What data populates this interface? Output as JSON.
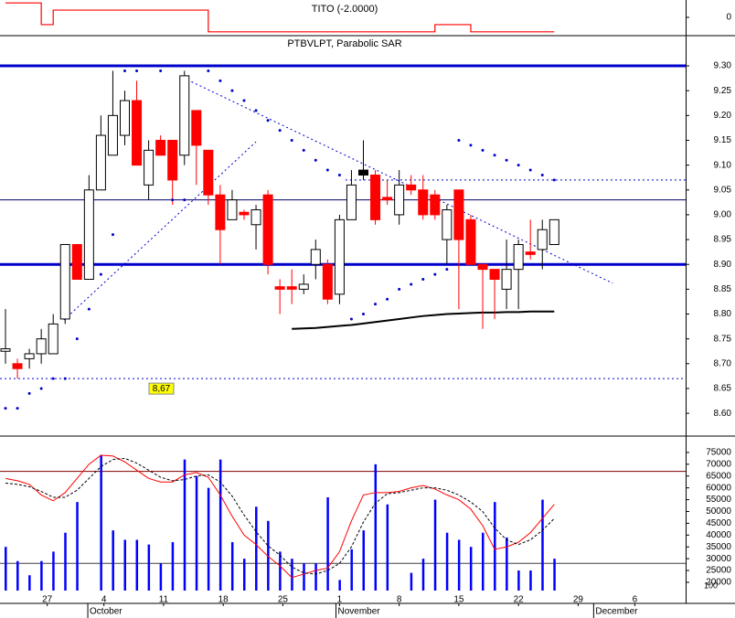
{
  "chart_data": [
    {
      "type": "step",
      "title": "TITO (-2.0000)",
      "color": "#ff0000",
      "values": [
        2,
        2,
        2,
        -1,
        1,
        1,
        1,
        1,
        1,
        1,
        1,
        1,
        1,
        1,
        1,
        1,
        1,
        -2,
        -2,
        -2,
        -2,
        -2,
        -2,
        -2,
        -2,
        -2,
        -2,
        -2,
        -2,
        -2,
        -2,
        -2,
        -2,
        -2,
        -2,
        -2,
        -1,
        -1,
        -1,
        -2,
        -2,
        -2,
        -2,
        -2,
        -2,
        -2,
        -2
      ],
      "ylim": [
        -2.4,
        2.4
      ],
      "yticks": [
        0
      ]
    },
    {
      "type": "candlestick",
      "title": "PTBVLPT, Parabolic SAR",
      "open": [
        8.725,
        8.7,
        8.71,
        8.72,
        8.72,
        8.79,
        8.94,
        8.87,
        9.05,
        9.12,
        9.16,
        9.23,
        9.06,
        9.15,
        9.15,
        9.12,
        9.21,
        9.13,
        9.04,
        8.99,
        9.005,
        8.98,
        9.04,
        8.855,
        8.855,
        8.85,
        8.9,
        8.9,
        8.84,
        8.99,
        9.08,
        9.08,
        9.035,
        9.0,
        9.06,
        9.05,
        9.04,
        8.95,
        9.05,
        8.99,
        8.9,
        8.89,
        8.85,
        8.89,
        8.925,
        8.93,
        8.94
      ],
      "high": [
        8.81,
        8.71,
        8.73,
        8.77,
        8.8,
        8.94,
        8.94,
        9.08,
        9.2,
        9.29,
        9.25,
        9.27,
        9.15,
        9.16,
        9.15,
        9.29,
        9.21,
        9.13,
        9.06,
        9.05,
        9.01,
        9.02,
        9.05,
        8.87,
        8.89,
        8.88,
        8.95,
        8.91,
        9.0,
        9.09,
        9.15,
        9.09,
        9.07,
        9.09,
        9.08,
        9.08,
        9.05,
        9.02,
        9.05,
        9.0,
        8.9,
        8.89,
        8.95,
        8.95,
        8.99,
        8.99,
        8.99
      ],
      "low": [
        8.7,
        8.67,
        8.69,
        8.7,
        8.72,
        8.78,
        8.87,
        8.87,
        9.05,
        9.12,
        9.14,
        9.1,
        9.03,
        9.12,
        9.02,
        9.1,
        9.06,
        9.02,
        8.9,
        8.99,
        8.99,
        8.93,
        8.88,
        8.8,
        8.82,
        8.84,
        8.87,
        8.82,
        8.82,
        8.99,
        9.07,
        8.98,
        9.02,
        8.98,
        9.04,
        8.99,
        8.99,
        8.9,
        8.81,
        8.9,
        8.77,
        8.79,
        8.81,
        8.81,
        8.91,
        8.89,
        8.94
      ],
      "close": [
        8.73,
        8.69,
        8.72,
        8.75,
        8.78,
        8.94,
        8.87,
        9.05,
        9.16,
        9.2,
        9.23,
        9.1,
        9.13,
        9.12,
        9.07,
        9.28,
        9.14,
        9.04,
        8.97,
        9.03,
        9.0,
        9.01,
        8.9,
        8.85,
        8.85,
        8.86,
        8.93,
        8.83,
        8.99,
        9.06,
        9.09,
        8.99,
        9.03,
        9.06,
        9.05,
        9.0,
        9.0,
        9.01,
        8.95,
        8.9,
        8.89,
        8.87,
        8.89,
        8.94,
        8.92,
        8.97,
        8.99
      ],
      "up_color": "#ffffff",
      "down_color": "#ff0000",
      "highlight": 30,
      "highlight_color": "#000000",
      "sar": [
        8.61,
        8.61,
        8.64,
        8.65,
        8.67,
        8.67,
        8.75,
        8.81,
        8.88,
        8.96,
        9.29,
        9.29,
        9.3,
        9.29,
        9.03,
        9.03,
        9.3,
        9.29,
        9.27,
        9.25,
        9.23,
        9.21,
        9.19,
        9.17,
        9.15,
        9.13,
        9.11,
        9.09,
        9.08,
        8.79,
        8.8,
        8.82,
        8.83,
        8.85,
        8.86,
        8.87,
        8.88,
        8.89,
        9.15,
        9.14,
        9.13,
        9.12,
        9.11,
        9.1,
        9.09,
        9.08,
        9.07
      ],
      "sar_color": "#0000cc",
      "average": [
        null,
        null,
        null,
        null,
        null,
        null,
        null,
        null,
        null,
        null,
        null,
        null,
        null,
        null,
        null,
        null,
        null,
        null,
        null,
        null,
        null,
        null,
        null,
        null,
        8.77,
        8.771,
        8.772,
        8.774,
        8.776,
        8.778,
        8.781,
        8.784,
        8.787,
        8.79,
        8.793,
        8.796,
        8.798,
        8.8,
        8.801,
        8.802,
        8.803,
        8.803,
        8.804,
        8.804,
        8.805,
        8.805,
        8.805
      ],
      "average_color": "#000000",
      "levels": [
        {
          "value": 9.3,
          "style": "thick",
          "color": "#0000cc"
        },
        {
          "value": 8.9,
          "style": "thick",
          "color": "#0000cc"
        },
        {
          "value": 9.03,
          "style": "thin",
          "color": "#000066"
        },
        {
          "value": 8.67,
          "style": "dotted",
          "color": "#0000cc",
          "label": "8,67"
        },
        {
          "value": 9.07,
          "style": "dotted",
          "color": "#0000cc",
          "from": 28.5
        }
      ],
      "trendlines": [
        {
          "x": [
            4.9,
            21
          ],
          "y": [
            8.788,
            9.147
          ],
          "color": "#0000cc"
        },
        {
          "x": [
            14.9,
            50.9
          ],
          "y": [
            9.276,
            8.862
          ],
          "color": "#0000cc"
        }
      ],
      "ylim": [
        8.556,
        9.359
      ],
      "yticks": [
        {
          "value": 9.3,
          "label": "9.30"
        },
        {
          "value": 9.25,
          "label": "9.25"
        },
        {
          "value": 9.2,
          "label": "9.20"
        },
        {
          "value": 9.15,
          "label": "9.15"
        },
        {
          "value": 9.1,
          "label": "9.10"
        },
        {
          "value": 9.05,
          "label": "9.05"
        },
        {
          "value": 9.0,
          "label": "9.00"
        },
        {
          "value": 8.95,
          "label": "8.95"
        },
        {
          "value": 8.9,
          "label": "8.90"
        },
        {
          "value": 8.85,
          "label": "8.85"
        },
        {
          "value": 8.8,
          "label": "8.80"
        },
        {
          "value": 8.75,
          "label": "8.75"
        },
        {
          "value": 8.7,
          "label": "8.70"
        },
        {
          "value": 8.65,
          "label": "8.65"
        },
        {
          "value": 8.6,
          "label": "8.60"
        }
      ]
    },
    {
      "type": "bar",
      "color": "#0000ff",
      "values": [
        35000,
        29000,
        23000,
        29000,
        33000,
        41000,
        54000,
        null,
        74000,
        42000,
        38000,
        38000,
        36000,
        28000,
        37000,
        72000,
        65000,
        60000,
        72000,
        37000,
        30000,
        52000,
        46000,
        33000,
        30000,
        28000,
        28000,
        56000,
        21000,
        34000,
        42000,
        70000,
        53000,
        null,
        24000,
        30000,
        55000,
        41000,
        38000,
        35000,
        41000,
        54000,
        39000,
        25000,
        25000,
        55000,
        30000
      ],
      "series": [
        {
          "color": "#ff0000",
          "style": "solid",
          "values": [
            64000,
            63000,
            61500,
            57000,
            54500,
            58000,
            64000,
            70000,
            73800,
            73500,
            71000,
            67500,
            64000,
            62500,
            62500,
            65500,
            66500,
            64500,
            57000,
            48000,
            40000,
            36000,
            31000,
            27000,
            22000,
            23500,
            25000,
            26000,
            33000,
            46000,
            57000,
            58000,
            58000,
            58500,
            60000,
            61000,
            59500,
            57000,
            55000,
            51000,
            44000,
            34000,
            35000,
            37000,
            41000,
            47000,
            53000
          ]
        },
        {
          "color": "#000000",
          "style": "dashed",
          "values": [
            62000,
            61500,
            60500,
            58500,
            56000,
            56000,
            59000,
            64000,
            69000,
            72000,
            72500,
            70500,
            67500,
            64500,
            63000,
            63500,
            65000,
            65500,
            62500,
            56500,
            48500,
            41500,
            35500,
            31500,
            26500,
            24000,
            23500,
            25000,
            28000,
            35000,
            45500,
            53500,
            57500,
            58000,
            59000,
            60000,
            60000,
            59000,
            57000,
            54000,
            50000,
            43000,
            38000,
            36000,
            38000,
            42000,
            47000
          ]
        }
      ],
      "levels": [
        {
          "value": 67000,
          "color": "#800000"
        },
        {
          "value": 28000,
          "color": "#404040"
        }
      ],
      "ylim": [
        16500,
        80000
      ],
      "yticks": [
        75000,
        70000,
        65000,
        60000,
        55000,
        50000,
        45000,
        40000,
        35000,
        30000,
        25000,
        20000
      ],
      "unit_label": "100",
      "xticks": [
        {
          "value": 3.5,
          "label": "27"
        },
        {
          "value": 8.25,
          "label": "4"
        },
        {
          "value": 13.25,
          "label": "11"
        },
        {
          "value": 18.25,
          "label": "18"
        },
        {
          "value": 23.25,
          "label": "25"
        },
        {
          "value": 28,
          "label": "1"
        },
        {
          "value": 33,
          "label": "8"
        },
        {
          "value": 38,
          "label": "15"
        },
        {
          "value": 43,
          "label": "22"
        },
        {
          "value": 48,
          "label": "29"
        },
        {
          "value": 52.75,
          "label": "6"
        }
      ],
      "months": [
        {
          "value": 6.9,
          "label": "October"
        },
        {
          "value": 27.7,
          "label": "November"
        },
        {
          "value": 49.3,
          "label": "December"
        }
      ]
    }
  ]
}
